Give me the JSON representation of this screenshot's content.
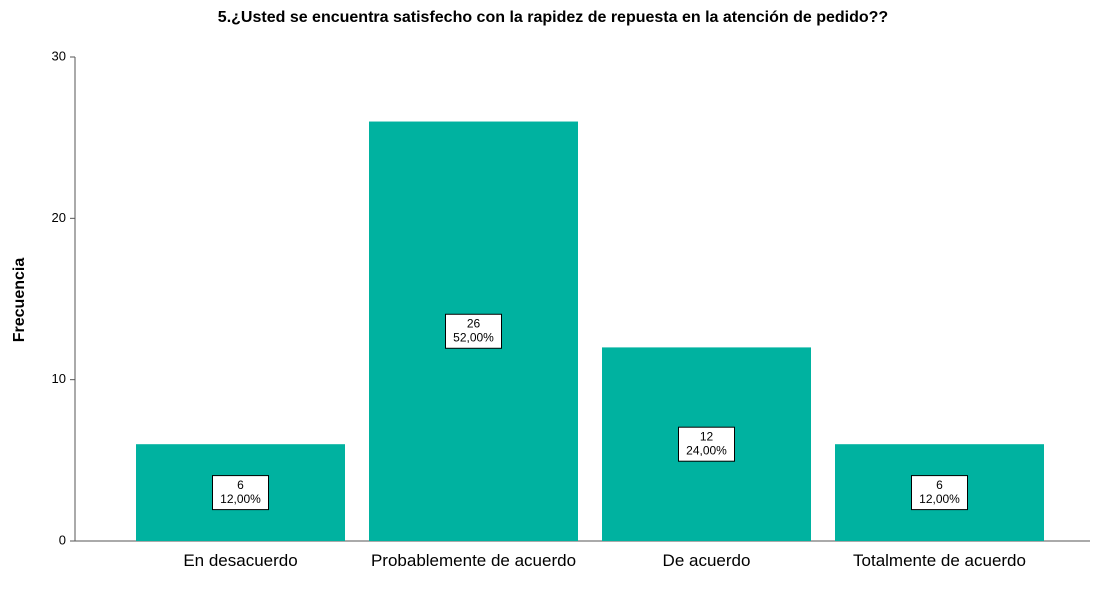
{
  "chart_data": {
    "type": "bar",
    "title": "5.¿Usted se encuentra satisfecho con la rapidez de repuesta en la atención de pedido??",
    "ylabel": "Frecuencia",
    "categories": [
      "En desacuerdo",
      "Probablemente de acuerdo",
      "De acuerdo",
      "Totalmente de acuerdo"
    ],
    "values": [
      6,
      26,
      12,
      6
    ],
    "percentages": [
      12,
      52,
      24,
      12
    ],
    "percentage_labels": [
      "12,00%",
      "52,00%",
      "24,00%",
      "12,00%"
    ],
    "color": "#00b2a0",
    "ylim": [
      0,
      30
    ],
    "yticks": [
      0,
      10,
      20,
      30
    ],
    "grid": false
  }
}
